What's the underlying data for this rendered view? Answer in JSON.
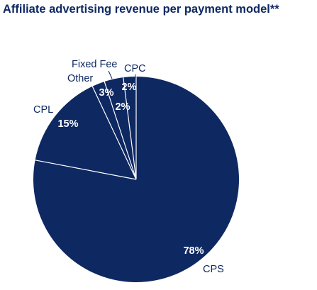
{
  "chart_data": {
    "type": "pie",
    "title": "Affiliate advertising revenue per payment model**",
    "slices": [
      {
        "label": "CPS",
        "value": 78,
        "value_label": "78%"
      },
      {
        "label": "CPL",
        "value": 15,
        "value_label": "15%"
      },
      {
        "label": "Other",
        "value": 2,
        "value_label": "2%"
      },
      {
        "label": "Fixed Fee",
        "value": 3,
        "value_label": "3%"
      },
      {
        "label": "CPC",
        "value": 2,
        "value_label": "2%"
      }
    ],
    "colors": {
      "fill": "#0e2862",
      "divider": "#ffffff"
    }
  }
}
